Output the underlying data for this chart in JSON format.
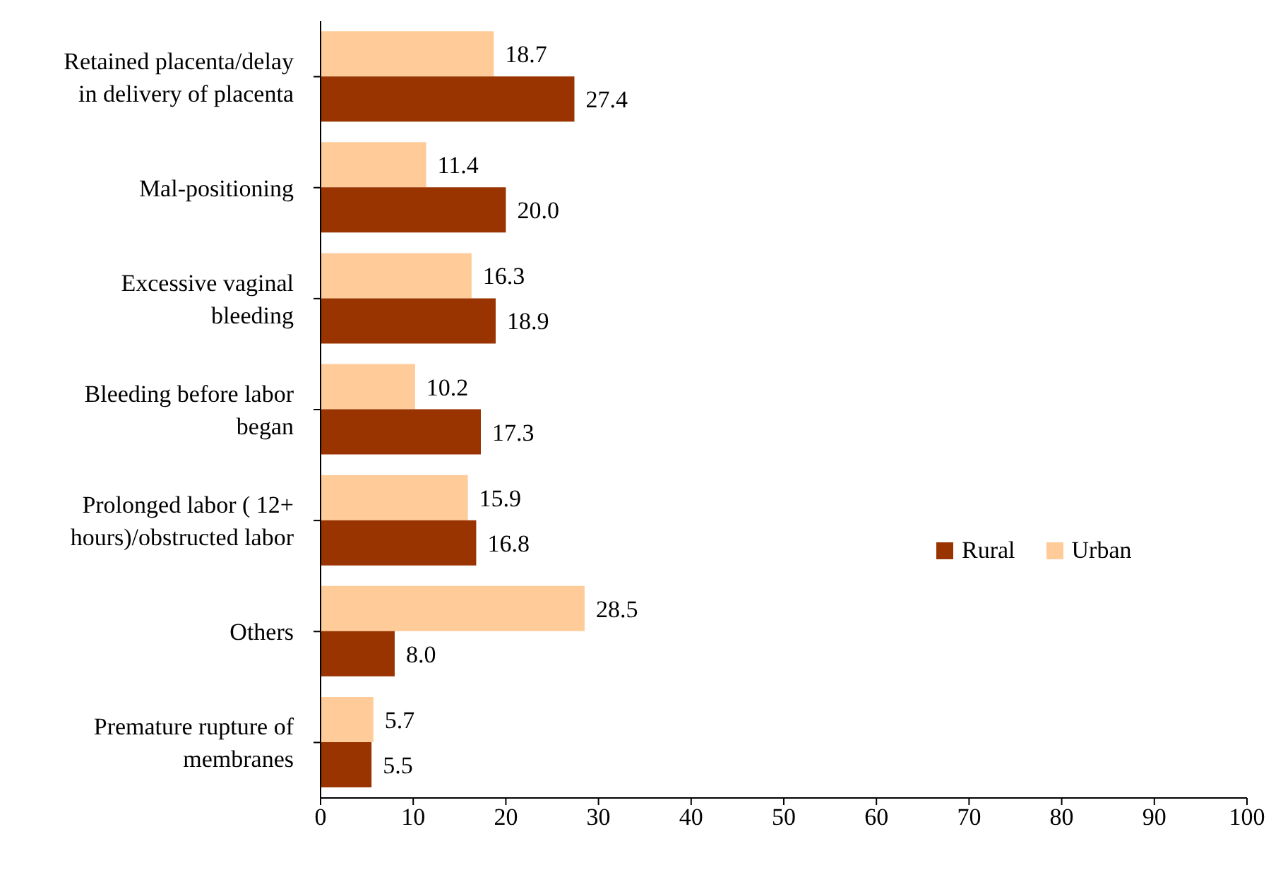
{
  "chart_data": {
    "type": "bar",
    "orientation": "horizontal",
    "categories": [
      "Retained placenta/delay in delivery of placenta",
      "Mal-positioning",
      "Excessive vaginal bleeding",
      "Bleeding before labor began",
      "Prolonged labor ( 12+ hours)/obstructed labor",
      "Others",
      "Premature rupture of membranes"
    ],
    "series": [
      {
        "name": "Rural",
        "color": "#993300",
        "values": [
          27.4,
          20,
          18.9,
          17.3,
          16.8,
          8,
          5.5
        ],
        "value_labels": [
          "27.4",
          "20.0",
          "18.9",
          "17.3",
          "16.8",
          "8.0",
          "5.5"
        ]
      },
      {
        "name": "Urban",
        "color": "#ffcc99",
        "values": [
          18.7,
          11.4,
          16.3,
          10.2,
          15.9,
          28.5,
          5.7
        ],
        "value_labels": [
          "18.7",
          "11.4",
          "16.3",
          "10.2",
          "15.9",
          "28.5",
          "5.7"
        ]
      }
    ],
    "xlim": [
      0,
      100
    ],
    "xticks": [
      0,
      10,
      20,
      30,
      40,
      50,
      60,
      70,
      80,
      90,
      100
    ],
    "grid": false,
    "legend": "right"
  }
}
